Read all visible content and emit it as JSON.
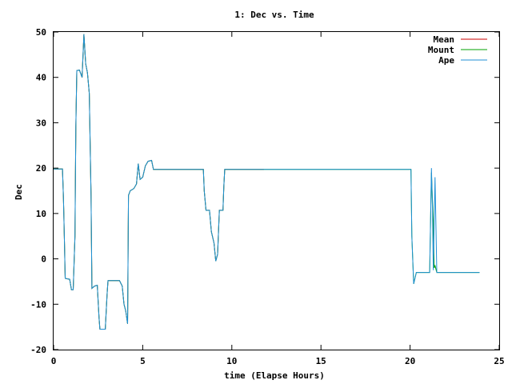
{
  "chart_data": {
    "type": "line",
    "title": "1: Dec vs. Time",
    "xlabel": "time (Elapse Hours)",
    "ylabel": "Dec",
    "xlim": [
      0,
      25
    ],
    "ylim": [
      -20,
      50
    ],
    "xticks": [
      0,
      5,
      10,
      15,
      20,
      25
    ],
    "yticks": [
      -20,
      -10,
      0,
      10,
      20,
      30,
      40,
      50
    ],
    "grid": false,
    "legend_position": "top-right",
    "series": [
      {
        "name": "Mean",
        "color": "#cc0000",
        "points": [
          [
            0,
            19.8
          ],
          [
            0.5,
            19.8
          ],
          [
            0.55,
            13.5
          ],
          [
            0.6,
            5
          ],
          [
            0.65,
            -4.3
          ],
          [
            0.9,
            -4.5
          ],
          [
            1.0,
            -6.8
          ],
          [
            1.1,
            -6.8
          ],
          [
            1.2,
            5
          ],
          [
            1.25,
            29
          ],
          [
            1.3,
            41.5
          ],
          [
            1.45,
            41.6
          ],
          [
            1.6,
            40
          ],
          [
            1.7,
            49.5
          ],
          [
            1.8,
            43
          ],
          [
            1.9,
            41
          ],
          [
            2.0,
            36.5
          ],
          [
            2.1,
            14
          ],
          [
            2.15,
            -6.5
          ],
          [
            2.3,
            -6
          ],
          [
            2.45,
            -5.8
          ],
          [
            2.55,
            -13
          ],
          [
            2.6,
            -15.5
          ],
          [
            2.9,
            -15.5
          ],
          [
            3.0,
            -8
          ],
          [
            3.05,
            -4.8
          ],
          [
            3.3,
            -4.8
          ],
          [
            3.7,
            -4.8
          ],
          [
            3.85,
            -6
          ],
          [
            3.95,
            -10
          ],
          [
            4.05,
            -11.5
          ],
          [
            4.15,
            -14.3
          ],
          [
            4.2,
            14
          ],
          [
            4.3,
            15
          ],
          [
            4.5,
            15.5
          ],
          [
            4.65,
            16.5
          ],
          [
            4.75,
            21
          ],
          [
            4.85,
            17.5
          ],
          [
            5.0,
            18
          ],
          [
            5.15,
            20.5
          ],
          [
            5.3,
            21.5
          ],
          [
            5.5,
            21.7
          ],
          [
            5.6,
            19.7
          ],
          [
            8.4,
            19.7
          ],
          [
            8.45,
            15
          ],
          [
            8.55,
            10.7
          ],
          [
            8.75,
            10.7
          ],
          [
            8.85,
            6
          ],
          [
            9.0,
            3.5
          ],
          [
            9.1,
            -0.5
          ],
          [
            9.2,
            1
          ],
          [
            9.3,
            10.7
          ],
          [
            9.5,
            10.7
          ],
          [
            9.55,
            16
          ],
          [
            9.6,
            19.7
          ],
          [
            11.8,
            19.7
          ]
        ]
      },
      {
        "name": "Mount",
        "color": "#00a000",
        "points": [
          [
            0,
            19.8
          ],
          [
            0.5,
            19.8
          ],
          [
            0.55,
            13.5
          ],
          [
            0.6,
            5
          ],
          [
            0.65,
            -4.3
          ],
          [
            0.9,
            -4.5
          ],
          [
            1.0,
            -6.8
          ],
          [
            1.1,
            -6.8
          ],
          [
            1.2,
            5
          ],
          [
            1.25,
            29
          ],
          [
            1.3,
            41.5
          ],
          [
            1.45,
            41.6
          ],
          [
            1.6,
            40
          ],
          [
            1.7,
            49.5
          ],
          [
            1.8,
            43
          ],
          [
            1.9,
            41
          ],
          [
            2.0,
            36.5
          ],
          [
            2.1,
            14
          ],
          [
            2.15,
            -6.5
          ],
          [
            2.3,
            -6
          ],
          [
            2.45,
            -5.8
          ],
          [
            2.55,
            -13
          ],
          [
            2.6,
            -15.5
          ],
          [
            2.9,
            -15.5
          ],
          [
            3.0,
            -8
          ],
          [
            3.05,
            -4.8
          ],
          [
            3.3,
            -4.8
          ],
          [
            3.7,
            -4.8
          ],
          [
            3.85,
            -6
          ],
          [
            3.95,
            -10
          ],
          [
            4.05,
            -11.5
          ],
          [
            4.15,
            -14.3
          ],
          [
            4.2,
            14
          ],
          [
            4.3,
            15
          ],
          [
            4.5,
            15.5
          ],
          [
            4.65,
            16.5
          ],
          [
            4.75,
            21
          ],
          [
            4.85,
            17.5
          ],
          [
            5.0,
            18
          ],
          [
            5.15,
            20.5
          ],
          [
            5.3,
            21.5
          ],
          [
            5.5,
            21.7
          ],
          [
            5.6,
            19.7
          ],
          [
            8.4,
            19.7
          ],
          [
            8.45,
            15
          ],
          [
            8.55,
            10.7
          ],
          [
            8.75,
            10.7
          ],
          [
            8.85,
            6
          ],
          [
            9.0,
            3.5
          ],
          [
            9.1,
            -0.5
          ],
          [
            9.2,
            1
          ],
          [
            9.3,
            10.7
          ],
          [
            9.5,
            10.7
          ],
          [
            9.55,
            16
          ],
          [
            9.6,
            19.7
          ],
          [
            20.05,
            19.7
          ],
          [
            20.1,
            5
          ],
          [
            20.2,
            -5.5
          ],
          [
            20.35,
            -3
          ],
          [
            21.1,
            -3
          ],
          [
            21.2,
            19
          ],
          [
            21.3,
            8
          ],
          [
            21.35,
            -2
          ],
          [
            21.4,
            -1.5
          ],
          [
            21.5,
            -3
          ],
          [
            23.9,
            -3
          ]
        ]
      },
      {
        "name": "Ape",
        "color": "#1f8fd6",
        "points": [
          [
            0,
            19.8
          ],
          [
            0.5,
            19.8
          ],
          [
            0.55,
            13.5
          ],
          [
            0.6,
            5
          ],
          [
            0.65,
            -4.3
          ],
          [
            0.9,
            -4.5
          ],
          [
            1.0,
            -6.8
          ],
          [
            1.1,
            -6.8
          ],
          [
            1.2,
            5
          ],
          [
            1.25,
            29
          ],
          [
            1.3,
            41.5
          ],
          [
            1.45,
            41.6
          ],
          [
            1.6,
            40
          ],
          [
            1.7,
            49.5
          ],
          [
            1.8,
            43
          ],
          [
            1.9,
            41
          ],
          [
            2.0,
            36.5
          ],
          [
            2.1,
            14
          ],
          [
            2.15,
            -6.5
          ],
          [
            2.3,
            -6
          ],
          [
            2.45,
            -5.8
          ],
          [
            2.55,
            -13
          ],
          [
            2.6,
            -15.5
          ],
          [
            2.9,
            -15.5
          ],
          [
            3.0,
            -8
          ],
          [
            3.05,
            -4.8
          ],
          [
            3.3,
            -4.8
          ],
          [
            3.7,
            -4.8
          ],
          [
            3.85,
            -6
          ],
          [
            3.95,
            -10
          ],
          [
            4.05,
            -11.5
          ],
          [
            4.15,
            -14.3
          ],
          [
            4.2,
            14
          ],
          [
            4.3,
            15
          ],
          [
            4.5,
            15.5
          ],
          [
            4.65,
            16.5
          ],
          [
            4.75,
            21
          ],
          [
            4.85,
            17.5
          ],
          [
            5.0,
            18
          ],
          [
            5.15,
            20.5
          ],
          [
            5.3,
            21.5
          ],
          [
            5.5,
            21.7
          ],
          [
            5.6,
            19.7
          ],
          [
            8.4,
            19.7
          ],
          [
            8.45,
            15
          ],
          [
            8.55,
            10.7
          ],
          [
            8.75,
            10.7
          ],
          [
            8.85,
            6
          ],
          [
            9.0,
            3.5
          ],
          [
            9.1,
            -0.5
          ],
          [
            9.2,
            1
          ],
          [
            9.3,
            10.7
          ],
          [
            9.5,
            10.7
          ],
          [
            9.55,
            16
          ],
          [
            9.6,
            19.7
          ],
          [
            20.05,
            19.7
          ],
          [
            20.1,
            5
          ],
          [
            20.2,
            -5.5
          ],
          [
            20.35,
            -3
          ],
          [
            21.1,
            -3
          ],
          [
            21.2,
            20
          ],
          [
            21.25,
            12
          ],
          [
            21.3,
            -2.5
          ],
          [
            21.4,
            18
          ],
          [
            21.5,
            -3
          ],
          [
            23.9,
            -3
          ]
        ]
      }
    ]
  }
}
